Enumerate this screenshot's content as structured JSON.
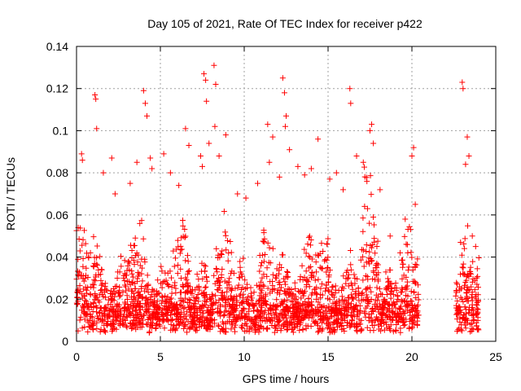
{
  "chart_data": {
    "type": "scatter",
    "title": "Day 105 of 2021, Rate Of TEC Index for receiver p422",
    "xlabel": "GPS time / hours",
    "ylabel": "ROTI / TECUs",
    "xlim": [
      0,
      25
    ],
    "ylim": [
      0,
      0.14
    ],
    "xticks": [
      0,
      5,
      10,
      15,
      20,
      25
    ],
    "xtick_labels": [
      "0",
      "5",
      "10",
      "15",
      "20",
      "25"
    ],
    "yticks": [
      0,
      0.02,
      0.04,
      0.06,
      0.08,
      0.1,
      0.12,
      0.14
    ],
    "ytick_labels": [
      "0",
      "0.02",
      "0.04",
      "0.06",
      "0.08",
      "0.1",
      "0.12",
      "0.14"
    ],
    "grid": true,
    "marker": "+",
    "color": "#ff0000",
    "coverage": [
      [
        0,
        20.4
      ],
      [
        22.6,
        24
      ]
    ],
    "series": [
      {
        "points": [
          [
            0.1,
            0.054
          ],
          [
            0.3,
            0.089
          ],
          [
            0.35,
            0.086
          ],
          [
            1.1,
            0.117
          ],
          [
            1.15,
            0.115
          ],
          [
            1.2,
            0.101
          ],
          [
            1.6,
            0.08
          ],
          [
            2.1,
            0.087
          ],
          [
            2.3,
            0.07
          ],
          [
            3.2,
            0.075
          ],
          [
            3.6,
            0.085
          ],
          [
            4.0,
            0.119
          ],
          [
            4.1,
            0.113
          ],
          [
            4.2,
            0.107
          ],
          [
            4.4,
            0.087
          ],
          [
            4.5,
            0.082
          ],
          [
            5.2,
            0.089
          ],
          [
            5.6,
            0.08
          ],
          [
            6.1,
            0.074
          ],
          [
            6.5,
            0.101
          ],
          [
            6.7,
            0.093
          ],
          [
            7.4,
            0.088
          ],
          [
            7.5,
            0.083
          ],
          [
            7.6,
            0.127
          ],
          [
            7.7,
            0.124
          ],
          [
            7.75,
            0.114
          ],
          [
            7.9,
            0.094
          ],
          [
            8.2,
            0.131
          ],
          [
            8.3,
            0.122
          ],
          [
            8.25,
            0.102
          ],
          [
            8.5,
            0.088
          ],
          [
            8.9,
            0.098
          ],
          [
            9.6,
            0.07
          ],
          [
            10.1,
            0.068
          ],
          [
            10.8,
            0.075
          ],
          [
            11.4,
            0.103
          ],
          [
            11.5,
            0.085
          ],
          [
            11.7,
            0.097
          ],
          [
            12.1,
            0.078
          ],
          [
            12.3,
            0.125
          ],
          [
            12.4,
            0.118
          ],
          [
            12.5,
            0.107
          ],
          [
            12.45,
            0.102
          ],
          [
            12.7,
            0.091
          ],
          [
            13.2,
            0.083
          ],
          [
            13.6,
            0.079
          ],
          [
            14.0,
            0.082
          ],
          [
            14.4,
            0.096
          ],
          [
            15.1,
            0.077
          ],
          [
            15.5,
            0.08
          ],
          [
            15.9,
            0.072
          ],
          [
            16.3,
            0.12
          ],
          [
            16.35,
            0.113
          ],
          [
            16.7,
            0.088
          ],
          [
            17.1,
            0.085
          ],
          [
            17.5,
            0.1
          ],
          [
            17.6,
            0.103
          ],
          [
            17.7,
            0.094
          ],
          [
            18.1,
            0.072
          ],
          [
            18.7,
            0.05
          ],
          [
            19.3,
            0.042
          ],
          [
            19.6,
            0.058
          ],
          [
            20.0,
            0.088
          ],
          [
            20.1,
            0.092
          ],
          [
            20.2,
            0.065
          ],
          [
            22.9,
            0.047
          ],
          [
            23.0,
            0.123
          ],
          [
            23.05,
            0.12
          ],
          [
            23.2,
            0.084
          ],
          [
            23.3,
            0.097
          ],
          [
            23.4,
            0.088
          ],
          [
            23.6,
            0.05
          ],
          [
            23.8,
            0.045
          ]
        ]
      }
    ]
  }
}
